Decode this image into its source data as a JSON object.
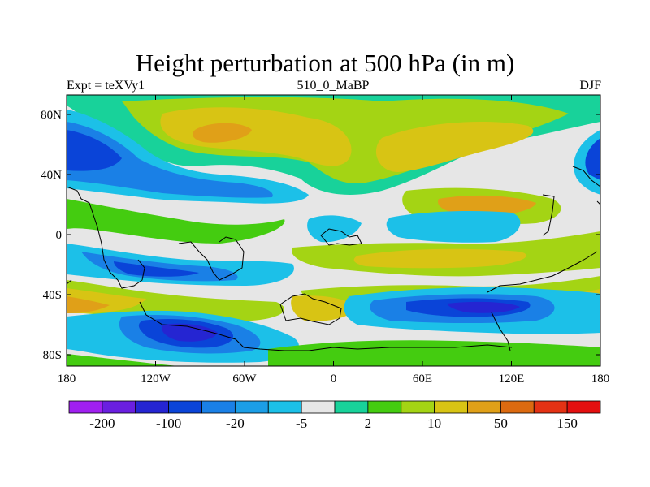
{
  "chart_data": {
    "type": "heatmap",
    "title": "Height perturbation at 500 hPa (in m)",
    "subtitle_left": "Expt = teXVy1",
    "subtitle_center": "510_0_MaBP",
    "subtitle_right": "DJF",
    "x_ticks": [
      "180",
      "120W",
      "60W",
      "0",
      "60E",
      "120E",
      "180"
    ],
    "y_ticks": [
      "80N",
      "40N",
      "0",
      "40S",
      "80S"
    ],
    "x_range": [
      -180,
      180
    ],
    "y_range": [
      -90,
      90
    ],
    "colorbar": {
      "labels": [
        "-200",
        "-100",
        "-20",
        "-5",
        "2",
        "10",
        "50",
        "150"
      ],
      "colors": [
        "#a020f0",
        "#6a1fe0",
        "#2525d2",
        "#0a44d8",
        "#1a80e6",
        "#1c9ee6",
        "#1cc0e8",
        "#e6e6e6",
        "#18d29a",
        "#44cc10",
        "#a4d414",
        "#d8c414",
        "#e0a018",
        "#dc6a10",
        "#e43214",
        "#e40f0f"
      ]
    }
  }
}
